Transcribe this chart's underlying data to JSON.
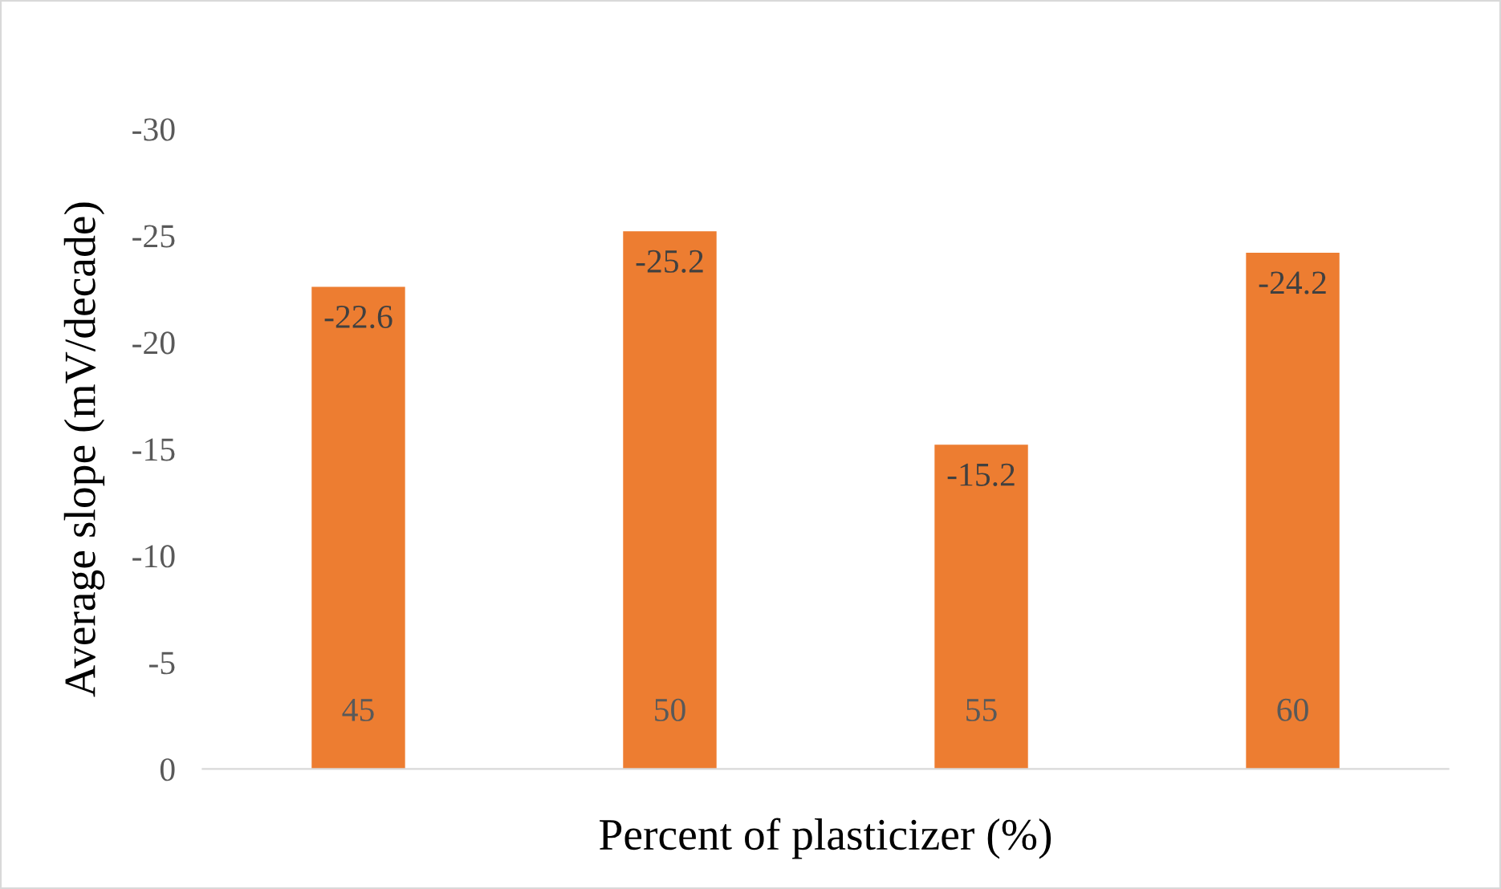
{
  "chart_data": {
    "type": "bar",
    "xlabel": "Percent of plasticizer (%)",
    "ylabel": "Average slope (mV/decade)",
    "categories": [
      "45",
      "50",
      "55",
      "60"
    ],
    "values": [
      -22.6,
      -25.2,
      -15.2,
      -24.2
    ],
    "color": "#ed7d31",
    "ylim": [
      0,
      -30
    ],
    "yticks": [
      0,
      -5,
      -10,
      -15,
      -20,
      -25,
      -30
    ],
    "data_labels": true,
    "grid": false,
    "legend": false
  }
}
